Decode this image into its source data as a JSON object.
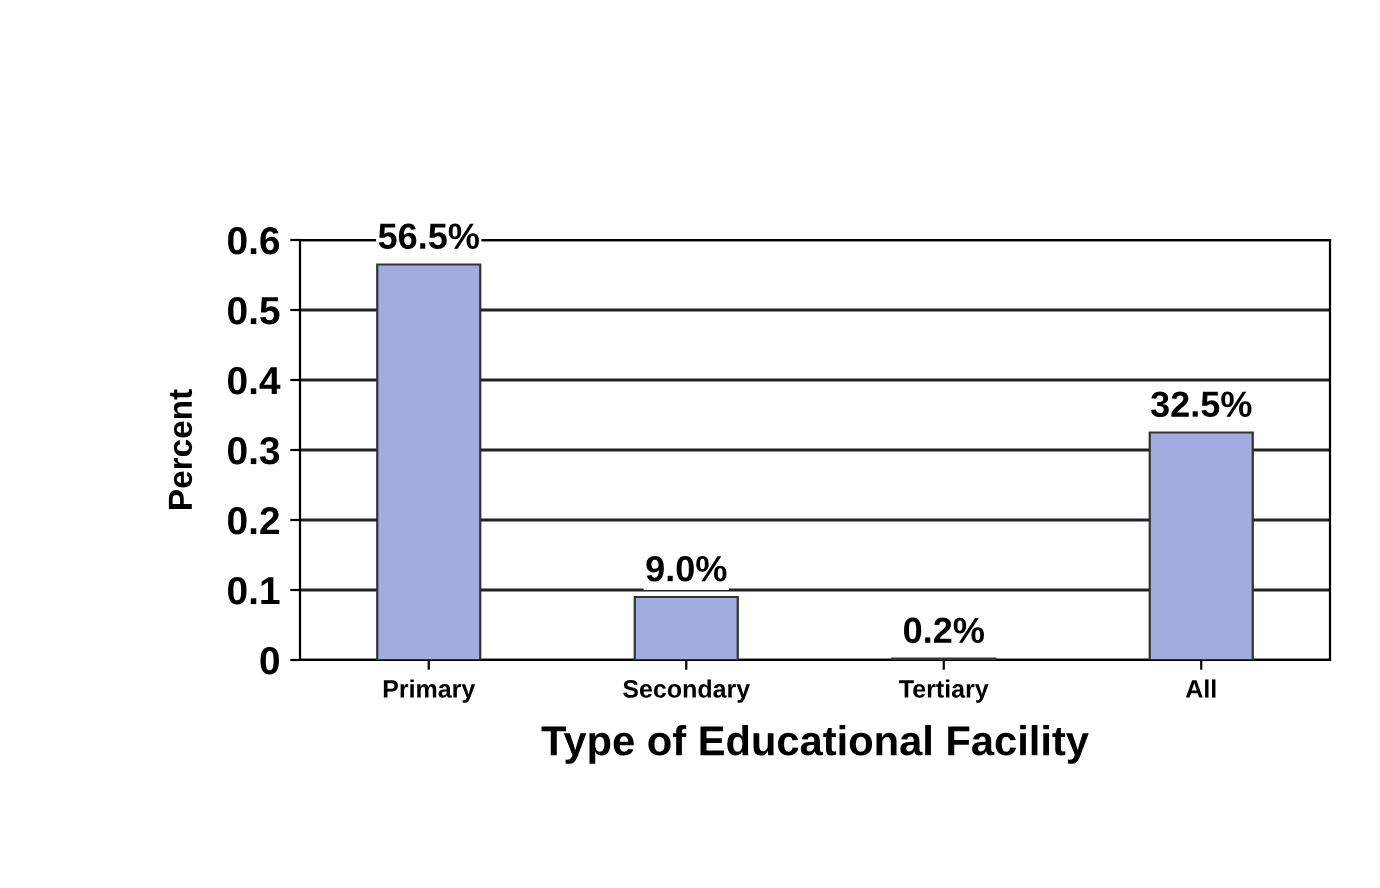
{
  "chart_data": {
    "type": "bar",
    "xlabel": "Type of Educational Facility",
    "ylabel": "Percent",
    "categories": [
      "Primary",
      "Secondary",
      "Tertiary",
      "All"
    ],
    "values": [
      0.565,
      0.09,
      0.002,
      0.325
    ],
    "value_labels": [
      "56.5%",
      "9.0%",
      "0.2%",
      "32.5%"
    ],
    "color": "#a3acdf",
    "ylim": [
      0,
      0.6
    ],
    "yticks": [
      0,
      0.1,
      0.2,
      0.3,
      0.4,
      0.5,
      0.6
    ],
    "grid": "y",
    "legend": false
  }
}
